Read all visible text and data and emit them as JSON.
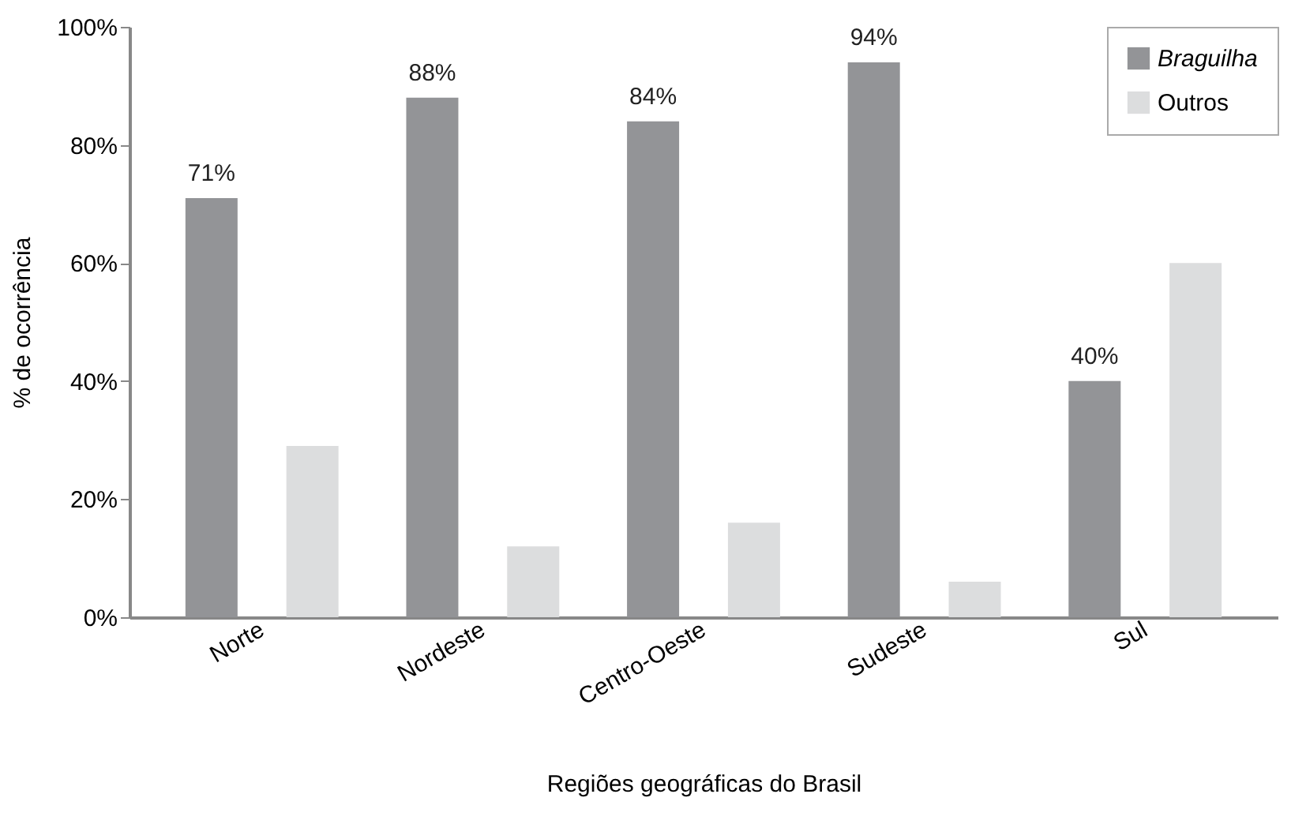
{
  "chart_data": {
    "type": "bar",
    "xlabel": "Regiões geográficas do Brasil",
    "ylabel": "% de ocorrência",
    "categories": [
      "Norte",
      "Nordeste",
      "Centro-Oeste",
      "Sudeste",
      "Sul"
    ],
    "series": [
      {
        "name": "Braguilha",
        "color": "#939497",
        "values": [
          71,
          88,
          84,
          94,
          40
        ],
        "value_labels": [
          "71%",
          "88%",
          "84%",
          "94%",
          "40%"
        ]
      },
      {
        "name": "Outros",
        "color": "#dcddde",
        "values": [
          29,
          12,
          16,
          6,
          60
        ]
      }
    ],
    "ylim": [
      0,
      100
    ],
    "yticks": [
      {
        "value": 0,
        "label": "0%"
      },
      {
        "value": 20,
        "label": "20%"
      },
      {
        "value": 40,
        "label": "40%"
      },
      {
        "value": 60,
        "label": "60%"
      },
      {
        "value": 80,
        "label": "80%"
      },
      {
        "value": 100,
        "label": "100%"
      }
    ],
    "grid": false,
    "legend": "top right"
  }
}
